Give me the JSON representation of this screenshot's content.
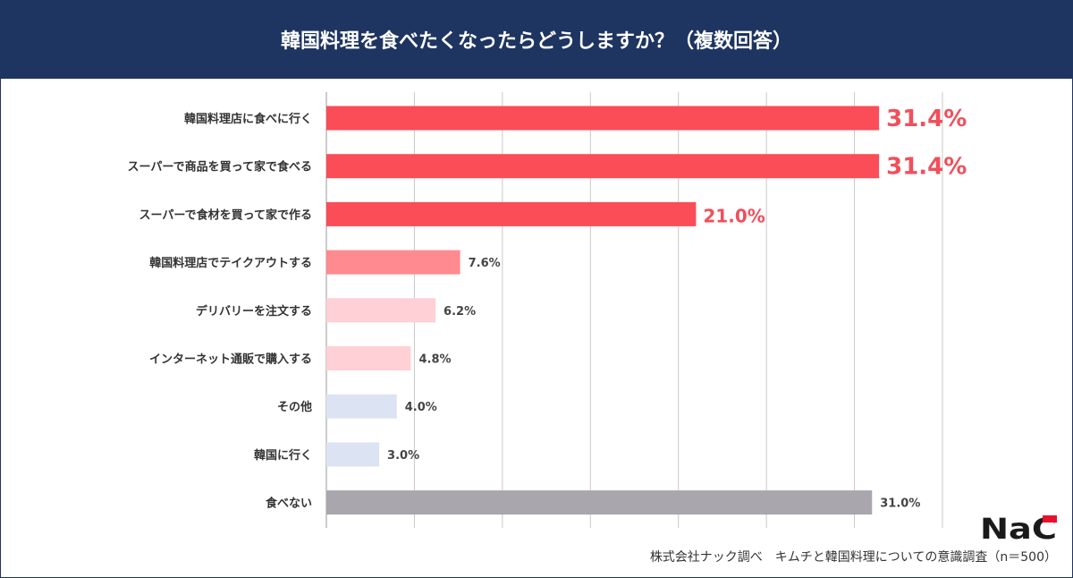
{
  "header": {
    "title": "韓国料理を食べたくなったらどうしますか？（複数回答）"
  },
  "footer": {
    "source": "株式会社ナック調べ　キムチと韓国料理についての意識調査（n＝500）"
  },
  "logo": {
    "text": "NAC"
  },
  "colors": {
    "header": "#1e3461",
    "highlight": "#fa4d58",
    "highlight_label": "#f0505b"
  },
  "chart_data": {
    "type": "bar",
    "orientation": "horizontal",
    "title": "韓国料理を食べたくなったらどうしますか？（複数回答）",
    "categories": [
      "韓国料理店に食べに行く",
      "スーパーで商品を買って家で食べる",
      "スーパーで食材を買って家で作る",
      "韓国料理店でテイクアウトする",
      "デリバリーを注文する",
      "インターネット通販で購入する",
      "その他",
      "韓国に行く",
      "食べない"
    ],
    "values": [
      31.4,
      31.4,
      21.0,
      7.6,
      6.2,
      4.8,
      4.0,
      3.0,
      31.0
    ],
    "labels": [
      "31.4%",
      "31.4%",
      "21.0%",
      "7.6%",
      "6.2%",
      "4.8%",
      "4.0%",
      "3.0%",
      "31.0%"
    ],
    "bar_colors": [
      "#fa4d58",
      "#fa4d58",
      "#fa4d58",
      "#ff8a8f",
      "#ffd0d5",
      "#ffd0d5",
      "#dce3f2",
      "#dce3f2",
      "#a9a6ad"
    ],
    "xlim": [
      0,
      35
    ],
    "grid_step": 5,
    "grid": true,
    "unit": "%"
  }
}
